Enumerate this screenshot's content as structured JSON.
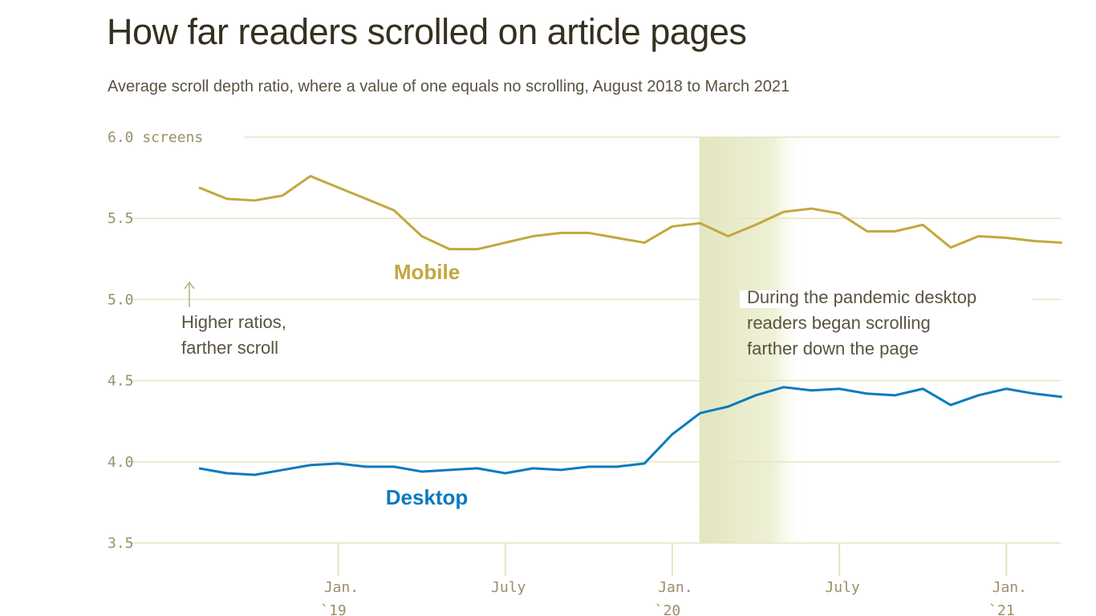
{
  "title": "How far readers scrolled on article pages",
  "subtitle": "Average scroll depth ratio, where a value of one equals no scrolling, August 2018 to March 2021",
  "chart_data": {
    "type": "line",
    "title": "How far readers scrolled on article pages",
    "subtitle": "Average scroll depth ratio, where a value of one equals no scrolling, August 2018 to March 2021",
    "ylim": [
      3.5,
      6.0
    ],
    "yticks": [
      {
        "value": 6.0,
        "label": "6.0 screens"
      },
      {
        "value": 5.5,
        "label": "5.5"
      },
      {
        "value": 5.0,
        "label": "5.0"
      },
      {
        "value": 4.5,
        "label": "4.5"
      },
      {
        "value": 4.0,
        "label": "4.0"
      },
      {
        "value": 3.5,
        "label": "3.5"
      }
    ],
    "xticks": [
      {
        "month": "2019-01",
        "label": "Jan.",
        "sublabel": "`19"
      },
      {
        "month": "2019-07",
        "label": "July",
        "sublabel": ""
      },
      {
        "month": "2020-01",
        "label": "Jan.",
        "sublabel": "`20"
      },
      {
        "month": "2020-07",
        "label": "July",
        "sublabel": ""
      },
      {
        "month": "2021-01",
        "label": "Jan.",
        "sublabel": "`21"
      }
    ],
    "grid": true,
    "x": [
      "2018-08",
      "2018-09",
      "2018-10",
      "2018-11",
      "2018-12",
      "2019-01",
      "2019-02",
      "2019-03",
      "2019-04",
      "2019-05",
      "2019-06",
      "2019-07",
      "2019-08",
      "2019-09",
      "2019-10",
      "2019-11",
      "2019-12",
      "2020-01",
      "2020-02",
      "2020-03",
      "2020-04",
      "2020-05",
      "2020-06",
      "2020-07",
      "2020-08",
      "2020-09",
      "2020-10",
      "2020-11",
      "2020-12",
      "2021-01",
      "2021-02",
      "2021-03"
    ],
    "series": [
      {
        "name": "Mobile",
        "color": "#c2a83e",
        "values": [
          5.69,
          5.62,
          5.61,
          5.64,
          5.76,
          5.69,
          5.62,
          5.55,
          5.39,
          5.31,
          5.31,
          5.35,
          5.39,
          5.41,
          5.41,
          5.38,
          5.35,
          5.45,
          5.47,
          5.39,
          5.46,
          5.54,
          5.56,
          5.53,
          5.42,
          5.42,
          5.46,
          5.32,
          5.39,
          5.38,
          5.36,
          5.35
        ]
      },
      {
        "name": "Desktop",
        "color": "#0a7bbf",
        "values": [
          3.96,
          3.93,
          3.92,
          3.95,
          3.98,
          3.99,
          3.97,
          3.97,
          3.94,
          3.95,
          3.96,
          3.93,
          3.96,
          3.95,
          3.97,
          3.97,
          3.99,
          4.17,
          4.3,
          4.34,
          4.41,
          4.46,
          4.44,
          4.45,
          4.42,
          4.41,
          4.45,
          4.35,
          4.41,
          4.45,
          4.42,
          4.4
        ]
      }
    ],
    "highlight": {
      "from": "2020-02",
      "to": "2020-05",
      "color": "#e3e5bf"
    },
    "annotations": {
      "higher": [
        "Higher ratios,",
        "farther scroll"
      ],
      "pandemic": [
        "During the pandemic desktop",
        "readers began scrolling",
        "farther down the page"
      ]
    }
  }
}
